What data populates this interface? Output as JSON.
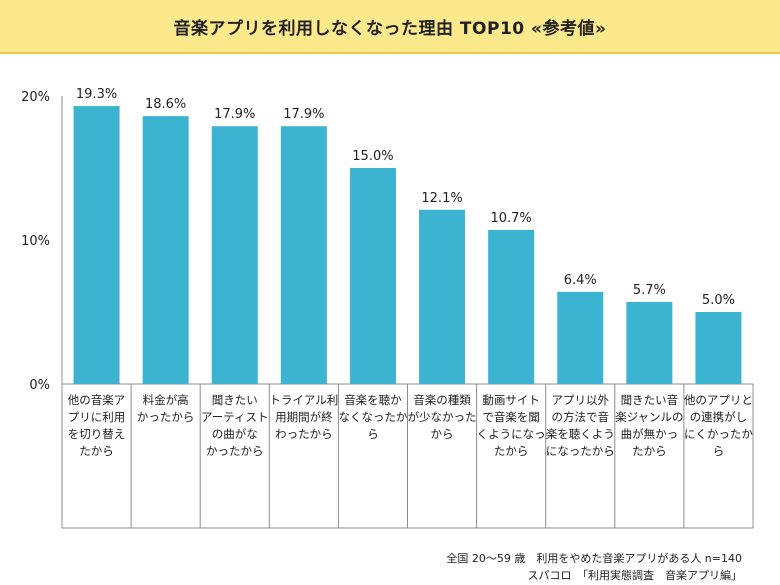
{
  "title": "音楽アプリを利用しなくなった理由 TOP10 «参考値»",
  "footer": {
    "line1": "全国 20～59 歳　利用をやめた音楽アプリがある人 n=140",
    "line2": "スパコロ　「利用実態調査　音楽アプリ編」"
  },
  "colors": {
    "bar": "#3bb3d1",
    "title_bg": "#fce98c",
    "title_border": "#f3c84c",
    "axis": "#8c8c8c"
  },
  "chart_data": {
    "type": "bar",
    "title": "音楽アプリを利用しなくなった理由 TOP10 «参考値»",
    "xlabel": "",
    "ylabel": "",
    "ylim": [
      0,
      20
    ],
    "y_ticks": [
      "0%",
      "10%",
      "20%"
    ],
    "y_tick_values": [
      0,
      10,
      20
    ],
    "grid": false,
    "categories": [
      [
        "他の音楽ア",
        "プリに利用",
        "を切り替え",
        "たから"
      ],
      [
        "料金が高",
        "かったから"
      ],
      [
        "聞きたい",
        "アーティスト",
        "の曲がな",
        "かったから"
      ],
      [
        "トライアル利",
        "用期間が終",
        "わったから"
      ],
      [
        "音楽を聴か",
        "なくなったか",
        "ら"
      ],
      [
        "音楽の種類",
        "が少なかった",
        "から"
      ],
      [
        "動画サイト",
        "で音楽を聞",
        "くようになっ",
        "たから"
      ],
      [
        "アプリ以外",
        "の方法で音",
        "楽を聴くよう",
        "になったから"
      ],
      [
        "聞きたい音",
        "楽ジャンルの",
        "曲が無かっ",
        "たから"
      ],
      [
        "他のアプリと",
        "の連携がし",
        "にくかったか",
        "ら"
      ]
    ],
    "values": [
      19.3,
      18.6,
      17.9,
      17.9,
      15.0,
      12.1,
      10.7,
      6.4,
      5.7,
      5.0
    ],
    "value_labels": [
      "19.3%",
      "18.6%",
      "17.9%",
      "17.9%",
      "15.0%",
      "12.1%",
      "10.7%",
      "6.4%",
      "5.7%",
      "5.0%"
    ]
  }
}
